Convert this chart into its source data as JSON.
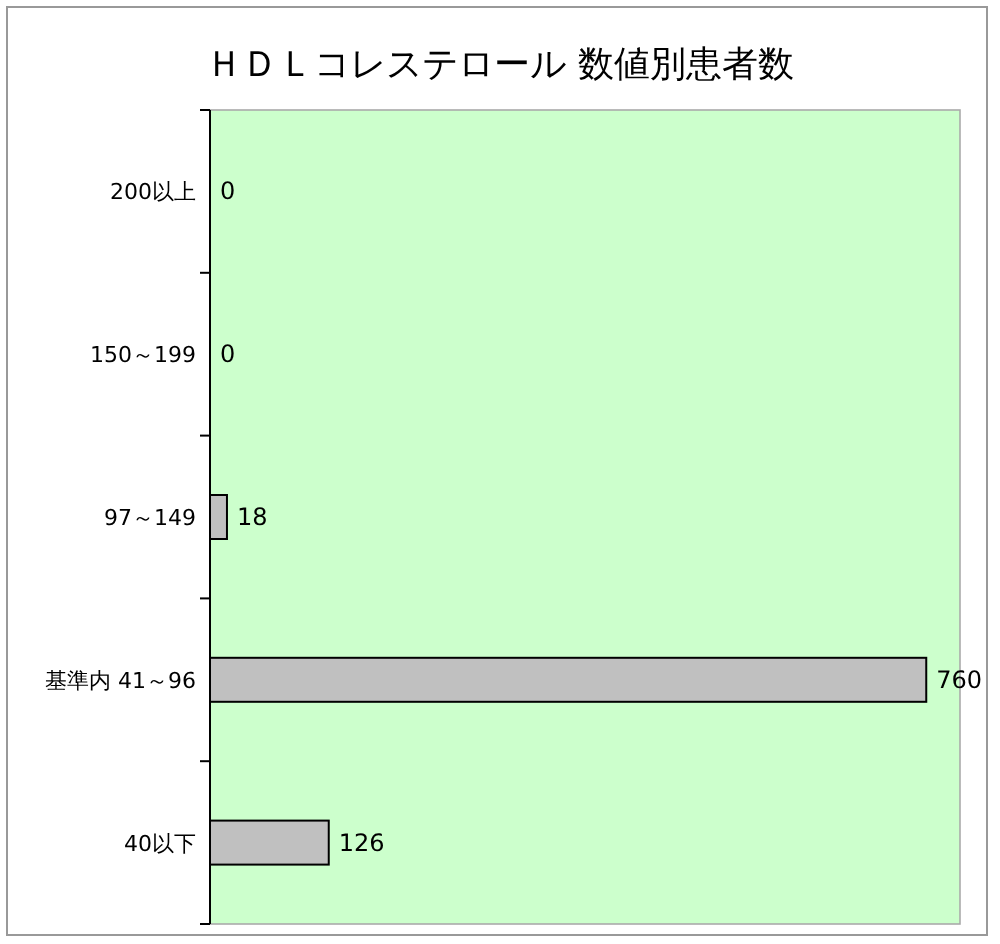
{
  "chart_data": {
    "type": "bar",
    "orientation": "horizontal",
    "title": "ＨＤＬコレステロール 数値別患者数",
    "categories": [
      "200以上",
      "150～199",
      "97～149",
      "基準内 41～96",
      "40以下"
    ],
    "values": [
      0,
      0,
      18,
      760,
      126
    ],
    "color": "#c0c0c0",
    "data_labels": true
  }
}
